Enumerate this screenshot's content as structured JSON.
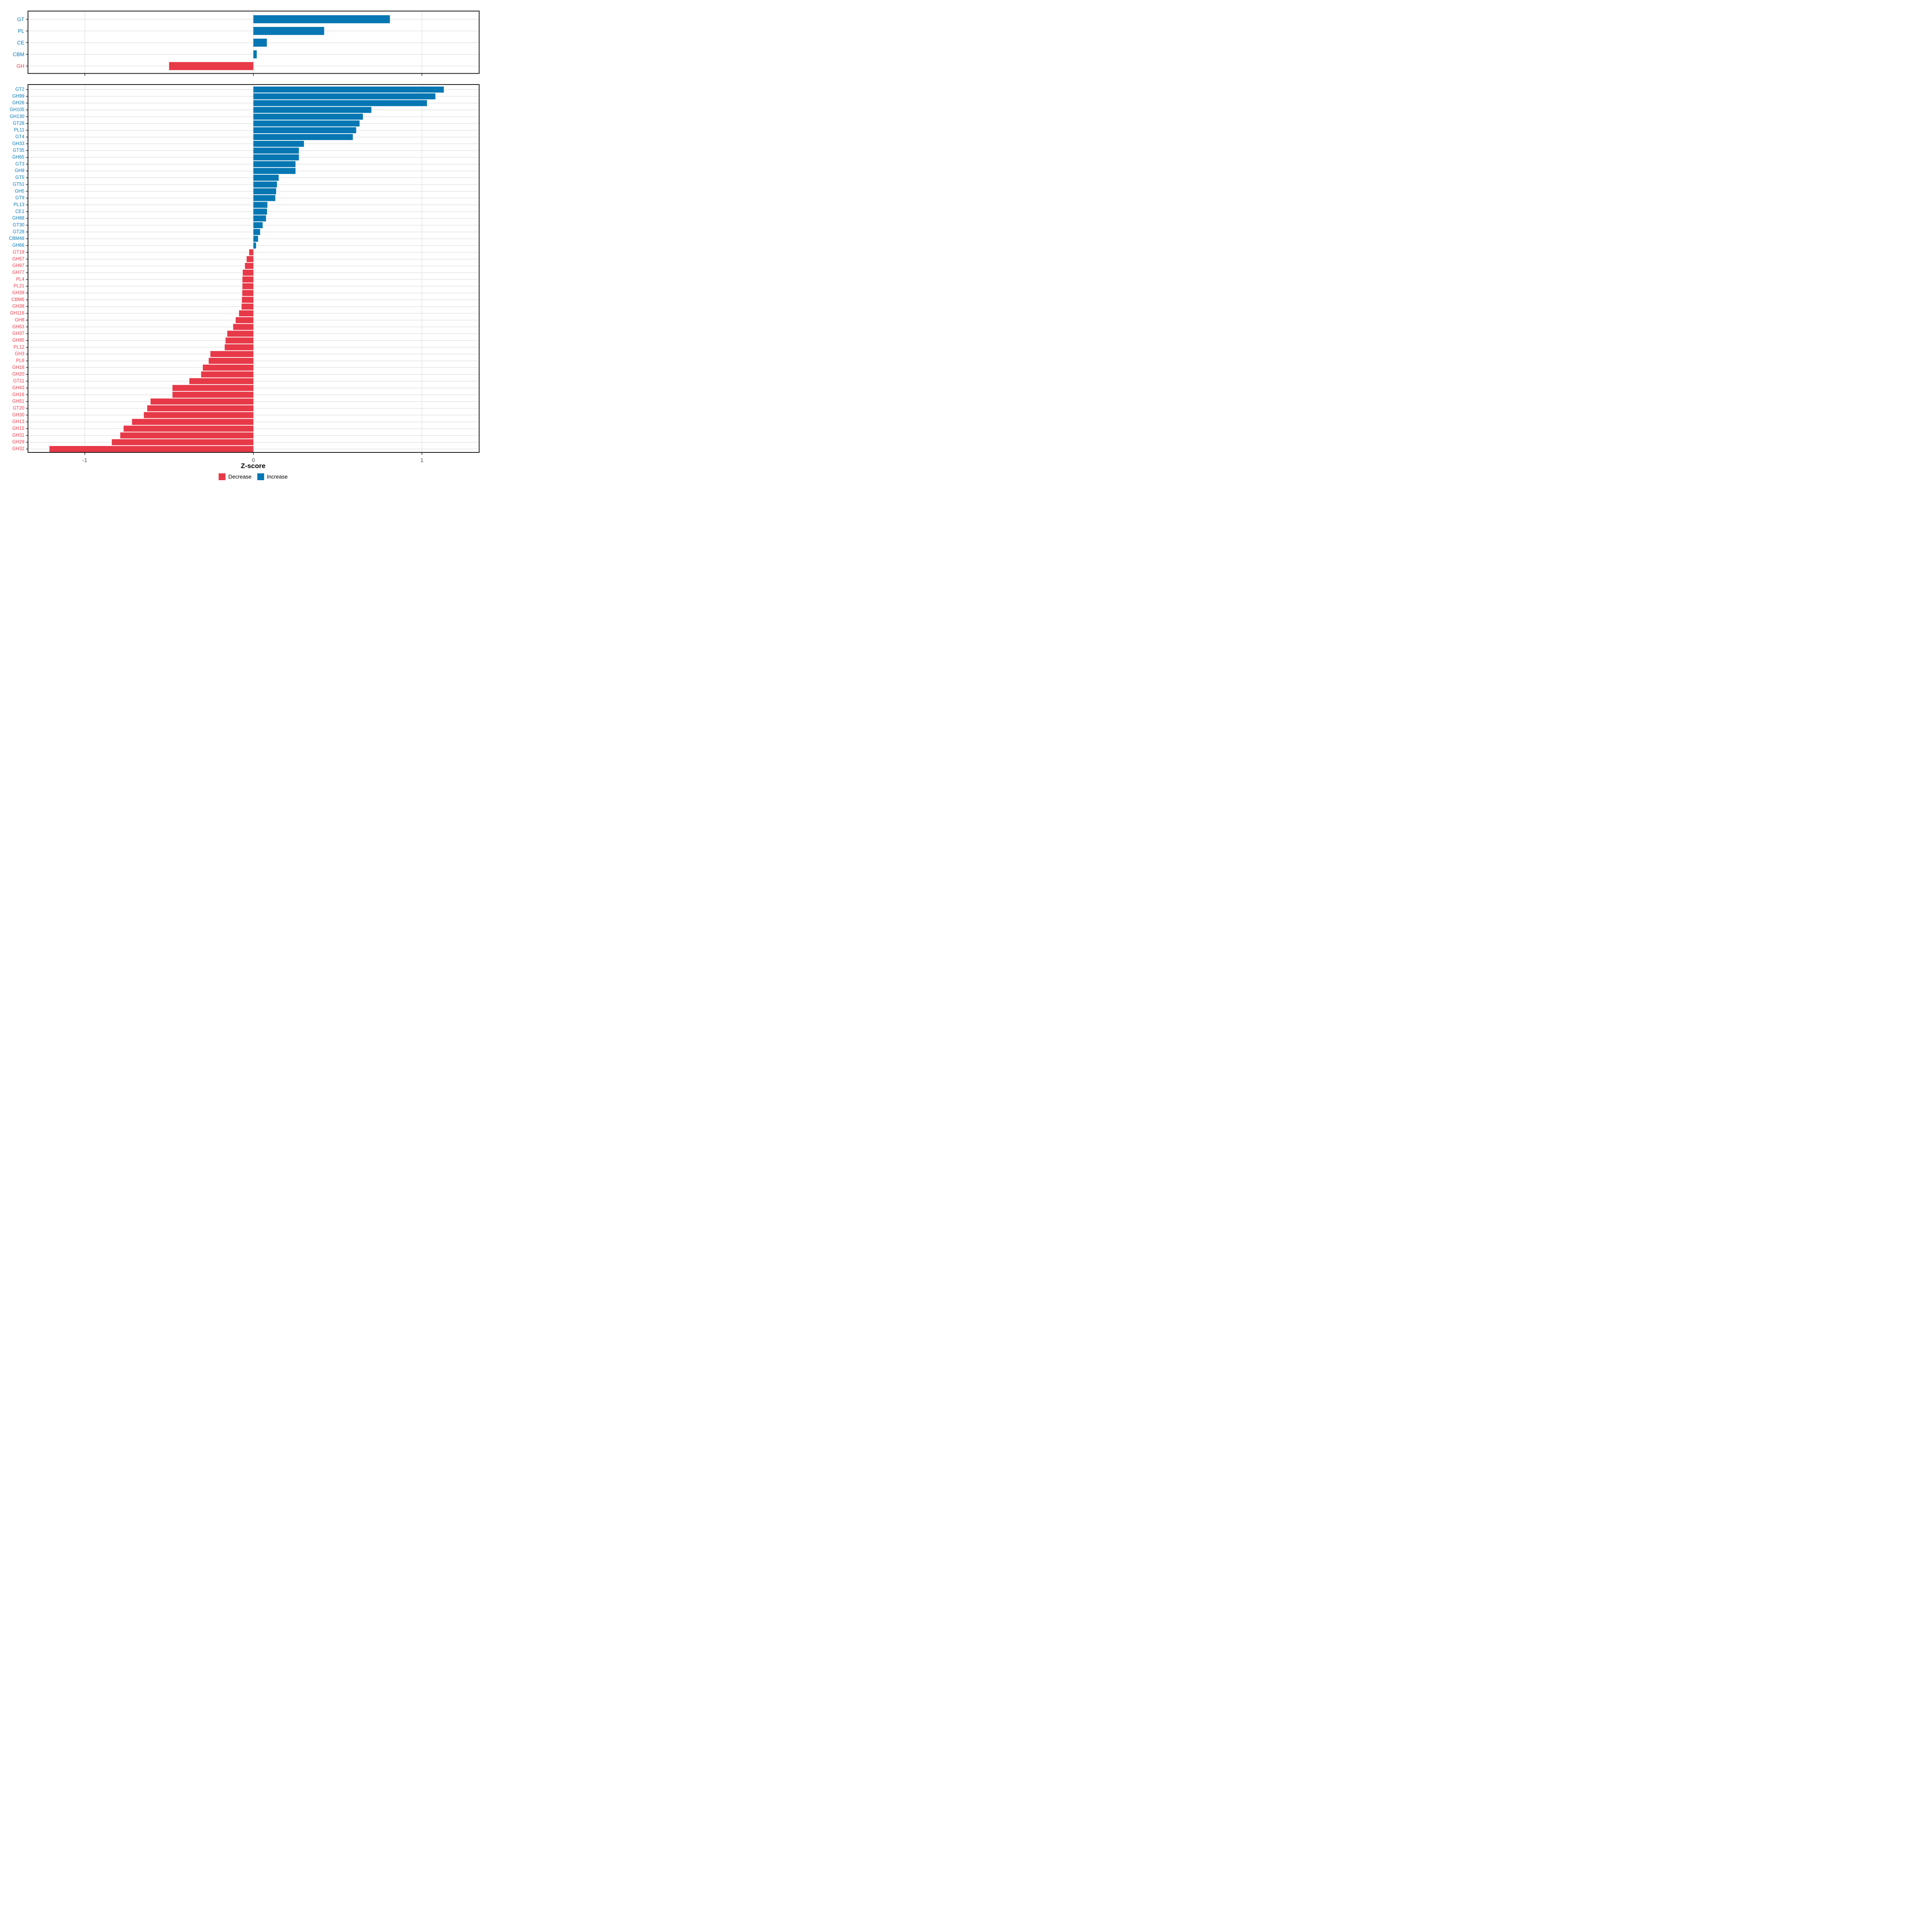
{
  "chart_data": [
    {
      "type": "bar",
      "orientation": "horizontal",
      "panel": "top",
      "categories": [
        "GT",
        "PL",
        "CE",
        "CBM",
        "GH"
      ],
      "values": [
        0.81,
        0.42,
        0.08,
        0.02,
        -0.5
      ],
      "xlabel": "Z-score",
      "xlim": [
        -1.34,
        1.34
      ],
      "xticks": [
        -1,
        0,
        1
      ],
      "grid": "on",
      "legend_position": "bottom"
    },
    {
      "type": "bar",
      "orientation": "horizontal",
      "panel": "bottom",
      "categories": [
        "GT2",
        "GH99",
        "GH26",
        "GH105",
        "GH130",
        "GT26",
        "PL11",
        "GT4",
        "GH33",
        "GT35",
        "GH65",
        "GT3",
        "GH9",
        "GT5",
        "GT51",
        "GH5",
        "GT9",
        "PL13",
        "CE1",
        "GH88",
        "GT30",
        "GT28",
        "CBM48",
        "GH66",
        "GT19",
        "GH57",
        "GH97",
        "GH77",
        "PL4",
        "PL21",
        "GH39",
        "CBM6",
        "GH38",
        "GH116",
        "GH8",
        "GH63",
        "GH37",
        "GH95",
        "PL12",
        "GH3",
        "PL8",
        "GH18",
        "GH20",
        "GT11",
        "GH43",
        "GH16",
        "GH51",
        "GT20",
        "GH30",
        "GH13",
        "GH15",
        "GH31",
        "GH29",
        "GH32"
      ],
      "values": [
        1.13,
        1.08,
        1.03,
        0.7,
        0.65,
        0.63,
        0.61,
        0.59,
        0.3,
        0.27,
        0.27,
        0.25,
        0.25,
        0.15,
        0.14,
        0.135,
        0.13,
        0.083,
        0.081,
        0.075,
        0.055,
        0.04,
        0.028,
        0.016,
        -0.025,
        -0.04,
        -0.05,
        -0.063,
        -0.065,
        -0.065,
        -0.066,
        -0.068,
        -0.07,
        -0.085,
        -0.105,
        -0.12,
        -0.155,
        -0.165,
        -0.17,
        -0.255,
        -0.265,
        -0.3,
        -0.31,
        -0.38,
        -0.48,
        -0.48,
        -0.61,
        -0.63,
        -0.65,
        -0.72,
        -0.77,
        -0.79,
        -0.84,
        -1.21
      ],
      "xlabel": "Z-score",
      "xlim": [
        -1.34,
        1.34
      ],
      "xticks": [
        -1,
        0,
        1
      ],
      "grid": "on",
      "legend_position": "bottom"
    }
  ],
  "axis": {
    "xlabel": "Z-score",
    "tick_labels": [
      "-1",
      "0",
      "1"
    ],
    "tick_values": [
      -1,
      0,
      1
    ]
  },
  "legend": {
    "items": [
      {
        "label": "Decrease",
        "color": "#E73948"
      },
      {
        "label": "Increase",
        "color": "#0777B3"
      }
    ]
  },
  "colors": {
    "increase": "#0777B3",
    "decrease": "#E73948",
    "gridline": "#E3E3E3",
    "panel_border": "#1A1A1A",
    "tick_label": "#4D4D4D",
    "tick_mark": "#333333",
    "background": "#FFFFFF"
  }
}
